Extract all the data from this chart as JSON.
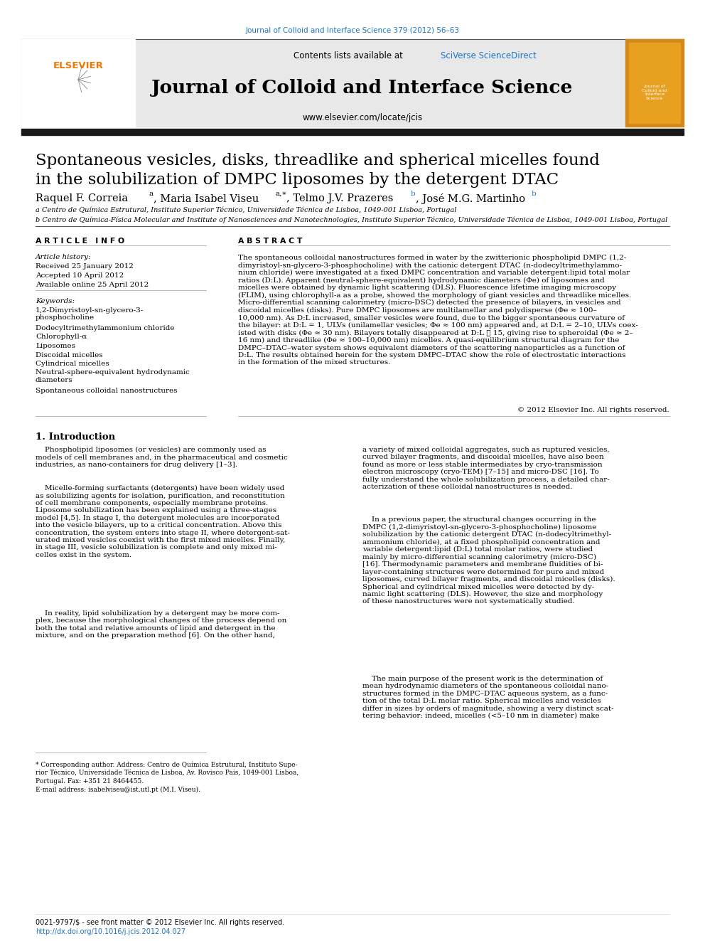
{
  "journal_ref": "Journal of Colloid and Interface Science 379 (2012) 56–63",
  "header_text": "Contents lists available at SciVerse ScienceDirect",
  "journal_name": "Journal of Colloid and Interface Science",
  "journal_url": "www.elsevier.com/locate/jcis",
  "title_line1": "Spontaneous vesicles, disks, threadlike and spherical micelles found",
  "title_line2": "in the solubilization of DMPC liposomes by the detergent DTAC",
  "affil_a": "a Centro de Química Estrutural, Instituto Superior Técnico, Universidade Técnica de Lisboa, 1049-001 Lisboa, Portugal",
  "affil_b": "b Centro de Química-Física Molecular and Institute of Nanosciences and Nanotechnologies, Instituto Superior Técnico, Universidade Técnica de Lisboa, 1049-001 Lisboa, Portugal",
  "article_info_title": "A R T I C L E   I N F O",
  "article_history_title": "Article history:",
  "received": "Received 25 January 2012",
  "accepted": "Accepted 10 April 2012",
  "available": "Available online 25 April 2012",
  "keywords_title": "Keywords:",
  "keywords": [
    "1,2-Dimyristoyl-sn-glycero-3-\nphosphocholine",
    "Dodecyltrimethylammonium chloride",
    "Chlorophyll-α",
    "Liposomes",
    "Discoidal micelles",
    "Cylindrical micelles",
    "Neutral-sphere-equivalent hydrodynamic\ndiameters",
    "Spontaneous colloidal nanostructures"
  ],
  "abstract_title": "A B S T R A C T",
  "abstract_text": "The spontaneous colloidal nanostructures formed in water by the zwitterionic phospholipid DMPC (1,2-\ndimyristoyl-sn-glycero-3-phosphocholine) with the cationic detergent DTAC (n-dodecyltrimethylammo-\nnium chloride) were investigated at a fixed DMPC concentration and variable detergent:lipid total molar\nratios (D:L). Apparent (neutral-sphere-equivalent) hydrodynamic diameters (Φe) of liposomes and\nmicelles were obtained by dynamic light scattering (DLS). Fluorescence lifetime imaging microscopy\n(FLIM), using chlorophyll-a as a probe, showed the morphology of giant vesicles and threadlike micelles.\nMicro-differential scanning calorimetry (micro-DSC) detected the presence of bilayers, in vesicles and\ndiscoidal micelles (disks). Pure DMPC liposomes are multilamellar and polydisperse (Φe ≈ 100–\n10,000 nm). As D:L increased, smaller vesicles were found, due to the bigger spontaneous curvature of\nthe bilayer: at D:L = 1, ULVs (unilamellar vesicles; Φe ≈ 100 nm) appeared and, at D:L = 2–10, ULVs coex-\nisted with disks (Φe ≈ 30 nm). Bilayers totally disappeared at D:L ⩾ 15, giving rise to spheroidal (Φe ≈ 2–\n16 nm) and threadlike (Φe ≈ 100–10,000 nm) micelles. A quasi-equilibrium structural diagram for the\nDMPC–DTAC–water system shows equivalent diameters of the scattering nanoparticles as a function of\nD:L. The results obtained herein for the system DMPC–DTAC show the role of electrostatic interactions\nin the formation of the mixed structures.",
  "copyright": "© 2012 Elsevier Inc. All rights reserved.",
  "section1_title": "1. Introduction",
  "intro_col1_p1": "    Phospholipid liposomes (or vesicles) are commonly used as\nmodels of cell membranes and, in the pharmaceutical and cosmetic\nindustries, as nano-containers for drug delivery [1–3].",
  "intro_col1_p2": "    Micelle-forming surfactants (detergents) have been widely used\nas solubilizing agents for isolation, purification, and reconstitution\nof cell membrane components, especially membrane proteins.\nLiposome solubilization has been explained using a three-stages\nmodel [4,5]. In stage I, the detergent molecules are incorporated\ninto the vesicle bilayers, up to a critical concentration. Above this\nconcentration, the system enters into stage II, where detergent-sat-\nurated mixed vesicles coexist with the first mixed micelles. Finally,\nin stage III, vesicle solubilization is complete and only mixed mi-\ncelles exist in the system.",
  "intro_col1_p3": "    In reality, lipid solubilization by a detergent may be more com-\nplex, because the morphological changes of the process depend on\nboth the total and relative amounts of lipid and detergent in the\nmixture, and on the preparation method [6]. On the other hand,",
  "intro_col2_p1": "a variety of mixed colloidal aggregates, such as ruptured vesicles,\ncurved bilayer fragments, and discoidal micelles, have also been\nfound as more or less stable intermediates by cryo-transmission\nelectron microscopy (cryo-TEM) [7–15] and micro-DSC [16]. To\nfully understand the whole solubilization process, a detailed char-\nacterization of these colloidal nanostructures is needed.",
  "intro_col2_p2": "    In a previous paper, the structural changes occurring in the\nDMPC (1,2-dimyristoyl-sn-glycero-3-phosphocholine) liposome\nsolubilization by the cationic detergent DTAC (n-dodecyltrimethyl-\nammonium chloride), at a fixed phospholipid concentration and\nvariable detergent:lipid (D:L) total molar ratios, were studied\nmainly by micro-differential scanning calorimetry (micro-DSC)\n[16]. Thermodynamic parameters and membrane fluidities of bi-\nlayer-containing structures were determined for pure and mixed\nliposomes, curved bilayer fragments, and discoidal micelles (disks).\nSpherical and cylindrical mixed micelles were detected by dy-\nnamic light scattering (DLS). However, the size and morphology\nof these nanostructures were not systematically studied.",
  "intro_col2_p3": "    The main purpose of the present work is the determination of\nmean hydrodynamic diameters of the spontaneous colloidal nano-\nstructures formed in the DMPC–DTAC aqueous system, as a func-\ntion of the total D:L molar ratio. Spherical micelles and vesicles\ndiffer in sizes by orders of magnitude, showing a very distinct scat-\ntering behavior: indeed, micelles (<5–10 nm in diameter) make",
  "footer_left": "0021-9797/$ - see front matter © 2012 Elsevier Inc. All rights reserved.",
  "footer_doi": "http://dx.doi.org/10.1016/j.jcis.2012.04.027",
  "footer_note_line1": "* Corresponding author. Address: Centro de Química Estrutural, Instituto Supe-",
  "footer_note_line2": "rior Técnico, Universidade Técnica de Lisboa, Av. Rovisco Pais, 1049-001 Lisboa,",
  "footer_note_line3": "Portugal. Fax: +351 21 8464455.",
  "footer_note_line4": "E-mail address: isabelviseu@ist.utl.pt (M.I. Viseu).",
  "link_color": "#1a75c4",
  "header_bg": "#e8e8e8",
  "black_bar_color": "#1a1a1a",
  "page_bg": "#ffffff",
  "text_color": "#000000"
}
